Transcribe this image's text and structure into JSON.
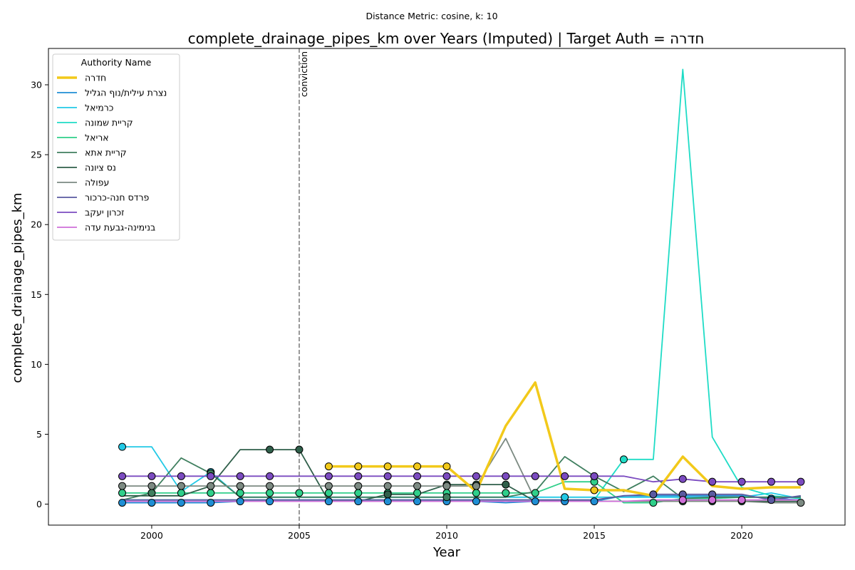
{
  "suptitle": "Distance Metric: cosine, k: 10",
  "chart_data": {
    "type": "line",
    "title": "complete_drainage_pipes_km over Years (Imputed) | Target Auth = חדרה",
    "xlabel": "Year",
    "ylabel": "complete_drainage_pipes_km",
    "xlim": [
      1996.5,
      2023.5
    ],
    "ylim": [
      -1.5,
      32.6
    ],
    "xticks": [
      2000,
      2005,
      2010,
      2015,
      2020
    ],
    "yticks": [
      0,
      5,
      10,
      15,
      20,
      25,
      30
    ],
    "grid": false,
    "legend": {
      "title": "Authority Name",
      "placement": "top-left"
    },
    "vline": {
      "x": 2005,
      "label": "conviction",
      "style": "dashed",
      "color": "#808080"
    },
    "x": [
      1999,
      2000,
      2001,
      2002,
      2003,
      2004,
      2005,
      2006,
      2007,
      2008,
      2009,
      2010,
      2011,
      2012,
      2013,
      2014,
      2015,
      2016,
      2017,
      2018,
      2019,
      2020,
      2021,
      2022
    ],
    "series": [
      {
        "name": "חדרה",
        "color": "#f2c91a",
        "target": true,
        "values": [
          null,
          null,
          null,
          null,
          null,
          null,
          null,
          2.7,
          2.7,
          2.7,
          2.7,
          2.7,
          0.9,
          5.6,
          8.7,
          1.1,
          1.0,
          1.0,
          0.6,
          3.4,
          1.3,
          1.1,
          1.2,
          1.2
        ],
        "markers": [
          7,
          8,
          9,
          10,
          11,
          16
        ]
      },
      {
        "name": "נצרת עילית/נוף הגליל",
        "color": "#1f8ed4",
        "values": [
          0.1,
          0.1,
          0.1,
          0.1,
          0.2,
          0.2,
          0.2,
          0.2,
          0.2,
          0.2,
          0.2,
          0.2,
          0.2,
          0.1,
          0.2,
          0.2,
          0.2,
          0.6,
          0.6,
          0.6,
          0.6,
          0.6,
          0.4,
          0.3
        ],
        "markers": [
          0,
          1,
          2,
          3,
          4,
          5,
          7,
          8,
          9,
          10,
          11,
          12,
          14,
          15,
          16,
          22
        ]
      },
      {
        "name": "כרמיאל",
        "color": "#22c9e6",
        "values": [
          4.1,
          4.1,
          0.9,
          2.3,
          0.5,
          0.5,
          0.5,
          0.5,
          0.5,
          0.5,
          0.5,
          0.5,
          0.5,
          0.5,
          0.5,
          0.5,
          0.5,
          0.5,
          0.5,
          0.5,
          0.5,
          0.5,
          0.8,
          0.4
        ],
        "markers": [
          0,
          3,
          15
        ]
      },
      {
        "name": "קריית שמונה",
        "color": "#1fdcc6",
        "values": [
          0.3,
          0.3,
          0.3,
          0.3,
          0.3,
          0.3,
          0.3,
          0.3,
          0.3,
          0.3,
          0.3,
          0.3,
          0.3,
          0.3,
          0.3,
          0.3,
          0.3,
          3.2,
          3.2,
          31.1,
          4.8,
          1.2,
          0.6,
          0.4
        ],
        "markers": [
          17
        ]
      },
      {
        "name": "אריאל",
        "color": "#2fcf8a",
        "values": [
          0.8,
          0.8,
          0.8,
          0.8,
          0.8,
          0.8,
          0.8,
          0.8,
          0.8,
          0.8,
          0.8,
          0.8,
          0.8,
          0.8,
          0.8,
          1.6,
          1.6,
          0.1,
          0.1,
          0.4,
          0.4,
          0.5,
          0.5,
          0.5
        ],
        "markers": [
          0,
          1,
          2,
          3,
          4,
          5,
          6,
          7,
          8,
          9,
          10,
          11,
          12,
          13,
          14,
          16,
          18
        ]
      },
      {
        "name": "קריית אתא",
        "color": "#3f7f5f",
        "values": [
          0.3,
          0.8,
          3.3,
          2.2,
          0.5,
          0.5,
          0.5,
          0.5,
          0.5,
          0.5,
          0.5,
          0.5,
          0.5,
          0.5,
          0.9,
          3.4,
          2.0,
          0.9,
          2.0,
          0.4,
          0.5,
          0.5,
          0.5,
          0.5
        ],
        "markers": [
          1,
          3,
          11,
          16
        ]
      },
      {
        "name": "נס ציונה",
        "color": "#2f5f4a",
        "values": [
          0.6,
          0.6,
          0.6,
          1.3,
          3.9,
          3.9,
          3.9,
          0.2,
          0.2,
          0.7,
          0.7,
          1.4,
          1.4,
          1.4,
          0.2,
          0.2,
          0.2,
          0.2,
          0.2,
          0.2,
          0.2,
          0.2,
          0.2,
          0.2
        ],
        "markers": [
          5,
          6,
          9,
          11,
          12,
          13,
          19,
          20,
          21
        ]
      },
      {
        "name": "עפולה",
        "color": "#7c8a82",
        "values": [
          1.3,
          1.3,
          1.3,
          1.3,
          1.3,
          1.3,
          1.3,
          1.3,
          1.3,
          1.3,
          1.3,
          1.3,
          1.3,
          4.7,
          0.3,
          0.2,
          0.2,
          0.2,
          0.2,
          0.2,
          0.2,
          0.2,
          0.1,
          0.1
        ],
        "markers": [
          0,
          1,
          2,
          3,
          4,
          5,
          7,
          8,
          9,
          10,
          11,
          12,
          23
        ]
      },
      {
        "name": "פרדס חנה-כרכור",
        "color": "#5a5aa0",
        "values": [
          0.3,
          0.3,
          0.3,
          0.3,
          0.3,
          0.3,
          0.3,
          0.3,
          0.3,
          0.3,
          0.3,
          0.3,
          0.3,
          0.3,
          0.3,
          0.3,
          0.3,
          0.6,
          0.7,
          0.7,
          0.7,
          0.7,
          0.3,
          0.6
        ],
        "markers": [
          18,
          19,
          20,
          22
        ]
      },
      {
        "name": "זכרון יעקב",
        "color": "#7b4bc0",
        "values": [
          2.0,
          2.0,
          2.0,
          2.0,
          2.0,
          2.0,
          2.0,
          2.0,
          2.0,
          2.0,
          2.0,
          2.0,
          2.0,
          2.0,
          2.0,
          2.0,
          2.0,
          2.0,
          1.6,
          1.8,
          1.6,
          1.6,
          1.6,
          1.6
        ],
        "markers": [
          0,
          1,
          2,
          3,
          4,
          5,
          7,
          8,
          9,
          10,
          11,
          12,
          13,
          14,
          15,
          16,
          19,
          20,
          21,
          22,
          23
        ]
      },
      {
        "name": "בנימינה-גבעת עדה",
        "color": "#cf6fd8",
        "values": [
          0.2,
          0.2,
          0.2,
          0.2,
          0.2,
          0.2,
          0.2,
          0.2,
          0.2,
          0.2,
          0.2,
          0.2,
          0.2,
          0.2,
          0.2,
          0.2,
          0.2,
          0.2,
          0.3,
          0.3,
          0.3,
          0.3,
          0.3,
          0.3
        ],
        "markers": [
          19,
          20,
          21
        ]
      }
    ]
  }
}
